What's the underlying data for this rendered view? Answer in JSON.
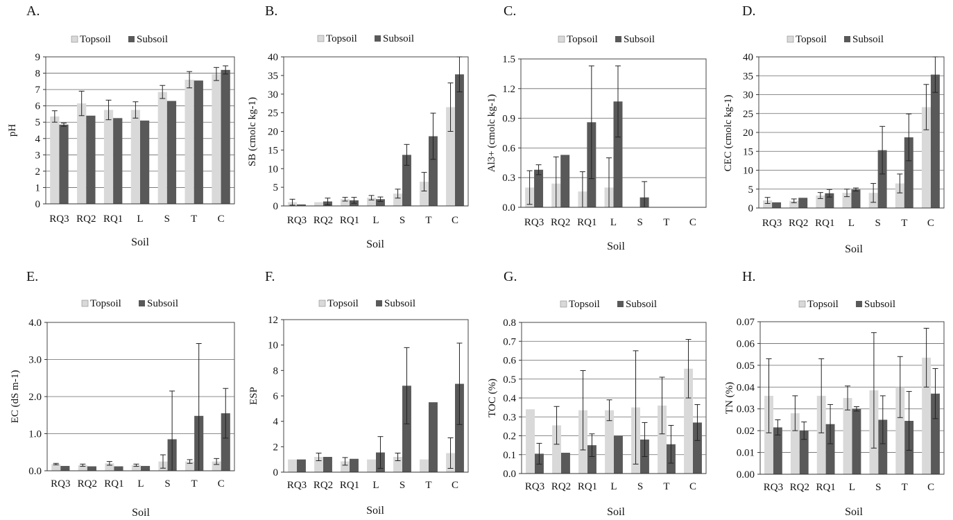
{
  "colors": {
    "topsoil": "#d9d9d9",
    "subsoil": "#595959"
  },
  "chart_data": [
    {
      "type": "bar",
      "letter": "A.",
      "ylabel": "pH",
      "xlabel": "Soil",
      "categories": [
        "RQ3",
        "RQ2",
        "RQ1",
        "L",
        "S",
        "T",
        "C"
      ],
      "ylim": [
        0,
        9
      ],
      "yticks": [
        "0",
        "1",
        "2",
        "3",
        "4",
        "5",
        "6",
        "7",
        "8",
        "9"
      ],
      "grid": true,
      "legend_position": "top",
      "series": [
        {
          "name": "Topsoil",
          "values": [
            5.35,
            6.15,
            5.75,
            5.75,
            6.85,
            7.6,
            7.95
          ],
          "errors": [
            0.35,
            0.75,
            0.6,
            0.5,
            0.4,
            0.5,
            0.4
          ]
        },
        {
          "name": "Subsoil",
          "values": [
            4.85,
            5.4,
            5.25,
            5.1,
            6.3,
            7.55,
            8.2
          ],
          "errors": [
            0.1,
            0.0,
            0.0,
            0.0,
            0.0,
            0.0,
            0.25
          ]
        }
      ]
    },
    {
      "type": "bar",
      "letter": "B.",
      "ylabel": "SB (cmolc kg-1)",
      "xlabel": "Soil",
      "categories": [
        "RQ3",
        "RQ2",
        "RQ1",
        "L",
        "S",
        "T",
        "C"
      ],
      "ylim": [
        0,
        40
      ],
      "yticks": [
        "0",
        "5",
        "10",
        "15",
        "20",
        "25",
        "30",
        "35",
        "40"
      ],
      "grid": false,
      "legend_position": "top",
      "series": [
        {
          "name": "Topsoil",
          "values": [
            1.0,
            1.0,
            1.8,
            2.2,
            3.3,
            6.5,
            26.5
          ],
          "errors": [
            0.8,
            0.0,
            0.5,
            0.6,
            1.2,
            2.5,
            6.5
          ]
        },
        {
          "name": "Subsoil",
          "values": [
            0.4,
            1.2,
            1.5,
            1.8,
            13.7,
            18.7,
            35.3
          ],
          "errors": [
            0.0,
            0.9,
            0.8,
            0.6,
            2.8,
            6.2,
            4.7
          ]
        }
      ]
    },
    {
      "type": "bar",
      "letter": "C.",
      "ylabel": "Al3+ (cmolc kg-1)",
      "xlabel": "Soil",
      "categories": [
        "RQ3",
        "RQ2",
        "RQ1",
        "L",
        "S",
        "T",
        "C"
      ],
      "ylim": [
        0,
        1.5
      ],
      "yticks": [
        "0.0",
        "0.3",
        "0.6",
        "0.9",
        "1.2",
        "1.5"
      ],
      "grid": true,
      "legend_position": "top",
      "series": [
        {
          "name": "Topsoil",
          "values": [
            0.2,
            0.24,
            0.16,
            0.2,
            0.0,
            0.0,
            0.0
          ],
          "errors": [
            0.17,
            0.27,
            0.2,
            0.3,
            0.0,
            0.0,
            0.0
          ]
        },
        {
          "name": "Subsoil",
          "values": [
            0.38,
            0.53,
            0.86,
            1.07,
            0.1,
            0.0,
            0.0
          ],
          "errors": [
            0.05,
            0.0,
            0.57,
            0.36,
            0.16,
            0.0,
            0.0
          ]
        }
      ]
    },
    {
      "type": "bar",
      "letter": "D.",
      "ylabel": "CEC (cmolc kg-1)",
      "xlabel": "Soil",
      "categories": [
        "RQ3",
        "RQ2",
        "RQ1",
        "L",
        "S",
        "T",
        "C"
      ],
      "ylim": [
        0,
        40
      ],
      "yticks": [
        "0",
        "5",
        "10",
        "15",
        "20",
        "25",
        "30",
        "35",
        "40"
      ],
      "grid": true,
      "legend_position": "top",
      "series": [
        {
          "name": "Topsoil",
          "values": [
            2.0,
            1.9,
            3.3,
            4.0,
            4.0,
            6.5,
            26.7
          ],
          "errors": [
            0.8,
            0.5,
            0.8,
            1.0,
            2.5,
            2.5,
            6.0
          ]
        },
        {
          "name": "Subsoil",
          "values": [
            1.5,
            2.7,
            3.9,
            4.9,
            15.3,
            18.7,
            35.3
          ],
          "errors": [
            0.0,
            0.0,
            1.0,
            0.4,
            6.3,
            6.2,
            4.7
          ]
        }
      ]
    },
    {
      "type": "bar",
      "letter": "E.",
      "ylabel": "EC (dS m-1)",
      "xlabel": "Soil",
      "categories": [
        "RQ3",
        "RQ2",
        "RQ1",
        "L",
        "S",
        "T",
        "C"
      ],
      "ylim": [
        0,
        4.0
      ],
      "yticks": [
        "0.0",
        "1.0",
        "2.0",
        "3.0",
        "4.0"
      ],
      "grid": true,
      "legend_position": "top",
      "series": [
        {
          "name": "Topsoil",
          "values": [
            0.18,
            0.15,
            0.2,
            0.15,
            0.25,
            0.25,
            0.25
          ],
          "errors": [
            0.02,
            0.03,
            0.05,
            0.03,
            0.18,
            0.05,
            0.08
          ]
        },
        {
          "name": "Subsoil",
          "values": [
            0.13,
            0.12,
            0.12,
            0.13,
            0.85,
            1.48,
            1.55
          ],
          "errors": [
            0.0,
            0.0,
            0.0,
            0.0,
            1.3,
            1.95,
            0.67
          ]
        }
      ]
    },
    {
      "type": "bar",
      "letter": "F.",
      "ylabel": "ESP",
      "xlabel": "Soil",
      "categories": [
        "RQ3",
        "RQ2",
        "RQ1",
        "L",
        "S",
        "T",
        "C"
      ],
      "ylim": [
        0,
        12
      ],
      "yticks": [
        "0",
        "2",
        "4",
        "6",
        "8",
        "10",
        "12"
      ],
      "grid": false,
      "legend_position": "top",
      "series": [
        {
          "name": "Topsoil",
          "values": [
            1.0,
            1.2,
            0.85,
            1.0,
            1.2,
            1.0,
            1.5
          ],
          "errors": [
            0.0,
            0.3,
            0.3,
            0.0,
            0.3,
            0.0,
            1.2
          ]
        },
        {
          "name": "Subsoil",
          "values": [
            1.0,
            1.2,
            1.05,
            1.55,
            6.8,
            5.5,
            6.95
          ],
          "errors": [
            0.0,
            0.0,
            0.0,
            1.25,
            3.0,
            0.0,
            3.2
          ]
        }
      ]
    },
    {
      "type": "bar",
      "letter": "G.",
      "ylabel": "TOC (%)",
      "xlabel": "Soil",
      "categories": [
        "RQ3",
        "RQ2",
        "RQ1",
        "L",
        "S",
        "T",
        "C"
      ],
      "ylim": [
        0,
        0.8
      ],
      "yticks": [
        "0.0",
        "0.1",
        "0.2",
        "0.3",
        "0.4",
        "0.5",
        "0.6",
        "0.7",
        "0.8"
      ],
      "grid": true,
      "legend_position": "top",
      "series": [
        {
          "name": "Topsoil",
          "values": [
            0.34,
            0.255,
            0.335,
            0.335,
            0.35,
            0.36,
            0.555
          ],
          "errors": [
            0.0,
            0.1,
            0.21,
            0.055,
            0.3,
            0.15,
            0.155
          ]
        },
        {
          "name": "Subsoil",
          "values": [
            0.105,
            0.11,
            0.15,
            0.2,
            0.18,
            0.155,
            0.27
          ],
          "errors": [
            0.055,
            0.0,
            0.06,
            0.0,
            0.09,
            0.1,
            0.095
          ]
        }
      ]
    },
    {
      "type": "bar",
      "letter": "H.",
      "ylabel": "TN (%)",
      "xlabel": "Soil",
      "categories": [
        "RQ3",
        "RQ2",
        "RQ1",
        "L",
        "S",
        "T",
        "C"
      ],
      "ylim": [
        0,
        0.07
      ],
      "yticks": [
        "0.00",
        "0.01",
        "0.02",
        "0.03",
        "0.04",
        "0.05",
        "0.06",
        "0.07"
      ],
      "grid": true,
      "legend_position": "top",
      "series": [
        {
          "name": "Topsoil",
          "values": [
            0.036,
            0.028,
            0.036,
            0.035,
            0.0385,
            0.04,
            0.0535
          ],
          "errors": [
            0.017,
            0.008,
            0.017,
            0.0055,
            0.0265,
            0.014,
            0.0135
          ]
        },
        {
          "name": "Subsoil",
          "values": [
            0.0215,
            0.02,
            0.023,
            0.03,
            0.025,
            0.0245,
            0.037
          ],
          "errors": [
            0.0035,
            0.004,
            0.009,
            0.001,
            0.011,
            0.0135,
            0.0115
          ]
        }
      ]
    }
  ]
}
